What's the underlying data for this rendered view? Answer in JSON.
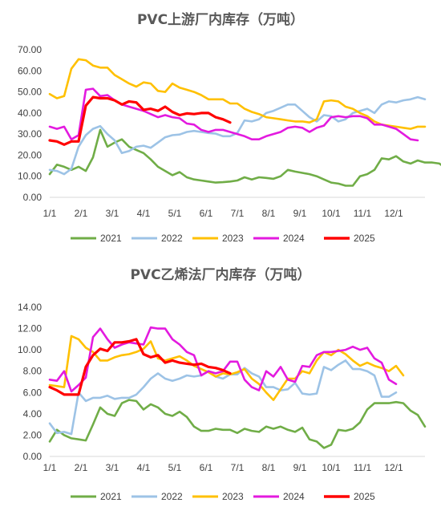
{
  "colors": {
    "2021": "#70ad47",
    "2022": "#9dc3e6",
    "2023": "#ffc000",
    "2024": "#e31adf",
    "2025": "#ff0000",
    "axis": "#d9d9d9",
    "text": "#404040",
    "title": "#595959"
  },
  "chart_data": [
    {
      "type": "line",
      "title": "PVC上游厂内库存（万吨）",
      "xlabel": "",
      "ylabel": "",
      "ylim": [
        0,
        70
      ],
      "yticks": [
        "0.00",
        "10.00",
        "20.00",
        "30.00",
        "40.00",
        "50.00",
        "60.00",
        "70.00"
      ],
      "x_tick_labels": [
        "1/1",
        "2/1",
        "3/1",
        "4/1",
        "5/1",
        "6/1",
        "7/1",
        "8/1",
        "9/1",
        "10/1",
        "11/1",
        "12/1"
      ],
      "x_unit": "week",
      "xlim": [
        1,
        53
      ],
      "grid": false,
      "legend": "bottom",
      "series": [
        {
          "name": "2021",
          "values": [
            11.0,
            15.5,
            14.5,
            13.0,
            14.5,
            12.5,
            19.0,
            32.0,
            24.0,
            26.0,
            27.5,
            24.0,
            22.5,
            21.0,
            18.0,
            14.5,
            12.5,
            10.5,
            12.0,
            9.5,
            8.5,
            8.0,
            7.5,
            7.0,
            7.2,
            7.5,
            8.0,
            9.5,
            8.5,
            9.5,
            9.2,
            8.8,
            10.0,
            13.0,
            12.2,
            11.6,
            11.0,
            10.0,
            8.5,
            7.0,
            6.5,
            5.5,
            5.5,
            10.0,
            11.0,
            13.0,
            18.5,
            18.0,
            19.5,
            17.0,
            16.0,
            17.5,
            16.5,
            16.5,
            16.0,
            13.5
          ]
        },
        {
          "name": "2022",
          "values": [
            13.0,
            12.5,
            11.0,
            13.5,
            24.0,
            29.5,
            32.5,
            33.8,
            30.0,
            27.0,
            21.0,
            22.0,
            24.0,
            24.5,
            23.5,
            26.0,
            28.5,
            29.5,
            29.8,
            31.0,
            31.5,
            31.0,
            30.5,
            30.2,
            29.0,
            29.0,
            30.5,
            36.5,
            36.0,
            37.0,
            40.0,
            41.0,
            42.5,
            44.0,
            44.0,
            41.0,
            38.0,
            36.0,
            39.0,
            38.5,
            36.0,
            37.0,
            40.0,
            41.0,
            42.0,
            40.0,
            44.0,
            45.5,
            45.0,
            46.0,
            46.5,
            47.5,
            46.5
          ]
        },
        {
          "name": "2023",
          "values": [
            49.0,
            47.0,
            48.0,
            61.0,
            65.5,
            65.0,
            62.5,
            61.5,
            61.5,
            58.0,
            56.0,
            54.0,
            52.5,
            54.5,
            54.0,
            50.5,
            50.0,
            54.0,
            52.0,
            51.0,
            50.0,
            48.5,
            46.5,
            46.5,
            46.5,
            44.5,
            44.5,
            42.0,
            40.5,
            39.5,
            38.0,
            37.5,
            37.0,
            36.5,
            36.0,
            36.0,
            35.5,
            37.0,
            45.5,
            46.0,
            45.5,
            43.0,
            42.0,
            40.0,
            38.5,
            36.0,
            34.5,
            34.0,
            33.5,
            33.0,
            32.5,
            33.5,
            33.5
          ]
        },
        {
          "name": "2024",
          "values": [
            33.5,
            32.5,
            33.5,
            27.5,
            29.5,
            51.0,
            51.5,
            48.0,
            48.5,
            46.0,
            44.0,
            43.0,
            42.0,
            41.0,
            39.5,
            38.0,
            39.0,
            38.0,
            37.5,
            35.0,
            34.5,
            32.0,
            31.0,
            32.0,
            32.0,
            31.0,
            30.0,
            29.0,
            27.5,
            27.5,
            29.0,
            30.0,
            31.0,
            33.0,
            33.5,
            33.0,
            31.0,
            33.0,
            34.0,
            38.0,
            38.5,
            38.0,
            38.5,
            38.5,
            37.5,
            34.5,
            34.5,
            33.5,
            32.5,
            30.0,
            27.5,
            27.0
          ]
        },
        {
          "name": "2025",
          "values": [
            27.0,
            26.5,
            25.0,
            26.5,
            26.5,
            43.5,
            47.5,
            47.0,
            47.0,
            46.0,
            44.0,
            45.5,
            45.0,
            41.5,
            42.0,
            41.0,
            43.0,
            40.5,
            39.0,
            39.8,
            39.5,
            40.0,
            40.0,
            38.0,
            37.0,
            35.5
          ]
        }
      ]
    },
    {
      "type": "line",
      "title": "PVC乙烯法厂内库存（万吨）",
      "xlabel": "",
      "ylabel": "",
      "ylim": [
        0,
        14
      ],
      "yticks": [
        "0.00",
        "2.00",
        "4.00",
        "6.00",
        "8.00",
        "10.00",
        "12.00",
        "14.00"
      ],
      "x_tick_labels": [
        "1/1",
        "2/1",
        "3/1",
        "4/1",
        "5/1",
        "6/1",
        "7/1",
        "8/1",
        "9/1",
        "10/1",
        "11/1",
        "12/1"
      ],
      "x_unit": "week",
      "xlim": [
        1,
        53
      ],
      "grid": false,
      "legend": "bottom",
      "series": [
        {
          "name": "2021",
          "values": [
            1.4,
            2.5,
            2.0,
            1.7,
            1.6,
            1.5,
            3.0,
            4.6,
            4.0,
            3.8,
            5.0,
            5.3,
            5.2,
            4.4,
            4.9,
            4.6,
            4.0,
            3.8,
            4.2,
            3.7,
            2.8,
            2.4,
            2.4,
            2.6,
            2.5,
            2.5,
            2.2,
            2.6,
            2.4,
            2.3,
            2.8,
            2.6,
            2.8,
            2.5,
            2.3,
            2.7,
            1.6,
            1.4,
            0.8,
            1.1,
            2.5,
            2.4,
            2.6,
            3.2,
            4.4,
            5.0,
            5.0,
            5.0,
            5.1,
            5.0,
            4.3,
            3.9,
            2.8
          ]
        },
        {
          "name": "2022",
          "values": [
            3.1,
            2.2,
            2.3,
            2.1,
            6.0,
            5.2,
            5.5,
            5.5,
            5.7,
            5.4,
            5.5,
            5.5,
            5.8,
            6.5,
            7.3,
            7.8,
            7.3,
            7.1,
            7.3,
            7.6,
            7.5,
            7.6,
            8.0,
            7.5,
            7.3,
            7.7,
            7.7,
            8.3,
            7.8,
            7.5,
            6.5,
            6.5,
            6.2,
            6.3,
            6.9,
            5.9,
            5.8,
            5.9,
            8.4,
            8.1,
            8.6,
            9.0,
            8.2,
            8.2,
            8.0,
            7.6,
            5.6,
            5.6,
            6.0
          ]
        },
        {
          "name": "2023",
          "values": [
            6.7,
            6.6,
            6.5,
            11.3,
            11.0,
            10.2,
            9.8,
            9.0,
            9.0,
            9.3,
            9.5,
            9.6,
            9.8,
            10.1,
            10.8,
            9.2,
            9.0,
            9.2,
            9.4,
            9.0,
            8.5,
            8.2,
            7.9,
            7.5,
            7.8,
            7.7,
            7.9,
            8.2,
            7.3,
            6.8,
            6.0,
            5.3,
            6.3,
            7.3,
            7.3,
            8.0,
            7.8,
            9.0,
            9.8,
            9.5,
            10.0,
            9.6,
            9.0,
            8.5,
            8.8,
            8.5,
            8.3,
            8.0,
            8.5,
            7.6
          ]
        },
        {
          "name": "2024",
          "values": [
            7.2,
            7.1,
            8.0,
            6.1,
            6.7,
            7.4,
            11.2,
            12.0,
            11.0,
            10.2,
            10.5,
            10.7,
            10.6,
            10.5,
            12.1,
            12.0,
            12.0,
            11.0,
            10.5,
            9.8,
            9.5,
            7.6,
            8.0,
            7.8,
            8.0,
            8.9,
            8.9,
            7.2,
            6.5,
            6.2,
            8.0,
            7.5,
            8.4,
            7.2,
            7.0,
            8.5,
            8.4,
            9.5,
            9.8,
            9.8,
            9.9,
            10.0,
            10.3,
            10.0,
            10.2,
            9.2,
            8.8,
            7.2,
            6.8
          ]
        },
        {
          "name": "2025",
          "values": [
            6.5,
            6.2,
            5.8,
            5.8,
            5.8,
            8.4,
            9.5,
            10.1,
            9.9,
            10.7,
            10.7,
            10.8,
            11.0,
            9.6,
            9.3,
            9.5,
            8.8,
            9.0,
            8.8,
            8.7,
            8.6,
            8.7,
            8.4,
            8.3,
            8.1,
            7.8
          ]
        }
      ]
    }
  ]
}
